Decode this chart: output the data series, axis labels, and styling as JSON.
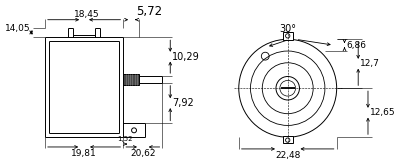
{
  "bg_color": "#ffffff",
  "line_color": "#000000",
  "gray_fill": "#505050",
  "annotations": {
    "left_view": {
      "14_05": "14,05",
      "18_45": "18,45",
      "5_72": "5,72",
      "10_29": "10,29",
      "7_92": "7,92",
      "1_52": "1,52",
      "19_81": "19,81",
      "20_62": "20,62"
    },
    "right_view": {
      "30deg": "30°",
      "6_86": "6,86",
      "12_7": "12,7",
      "12_65": "12,65",
      "22_48": "22,48"
    }
  }
}
